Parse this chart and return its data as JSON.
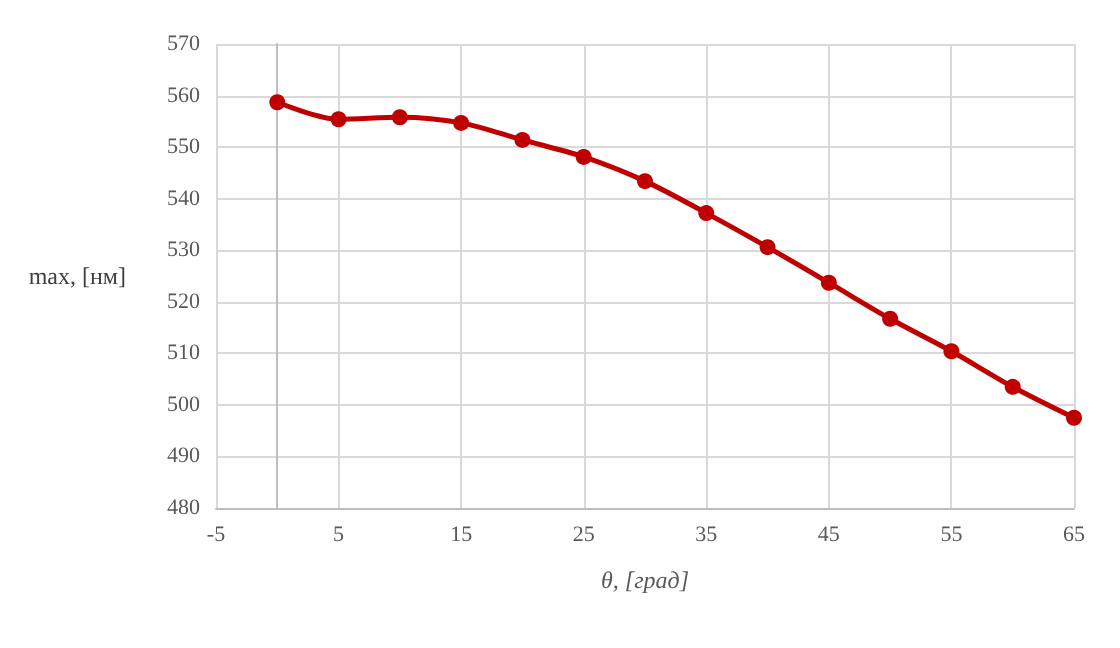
{
  "chart_data": {
    "type": "line",
    "xlabel": "θ, [град]",
    "ylabel": "max, [нм]",
    "x": [
      0,
      5,
      10,
      15,
      20,
      25,
      30,
      35,
      40,
      45,
      50,
      55,
      60,
      65
    ],
    "series": [
      {
        "color": "#c00000",
        "values": [
          558.7,
          555.4,
          555.8,
          554.7,
          551.4,
          548.1,
          543.4,
          537.2,
          530.6,
          523.7,
          516.7,
          510.4,
          503.5,
          497.5
        ]
      }
    ],
    "xlim": [
      -5,
      65
    ],
    "xticks": [
      -5,
      5,
      15,
      25,
      35,
      45,
      55,
      65
    ],
    "ylim": [
      480,
      570
    ],
    "yticks": [
      480,
      490,
      500,
      510,
      520,
      530,
      540,
      550,
      560,
      570
    ],
    "grid": true,
    "marker": "circle",
    "line_style": "solid"
  }
}
